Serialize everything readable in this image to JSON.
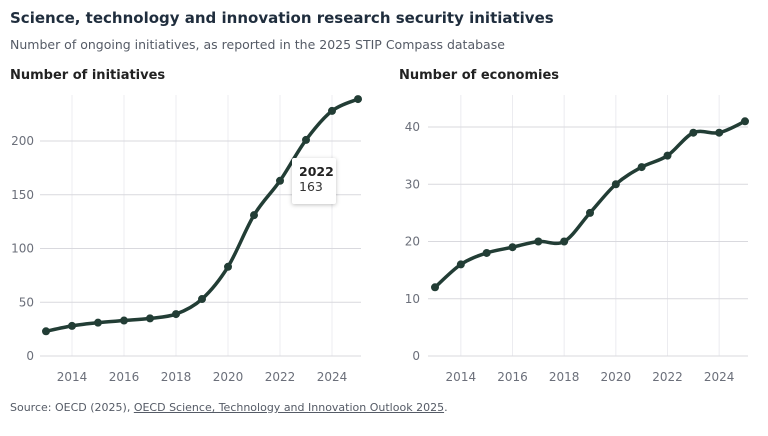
{
  "title": "Science, technology and innovation research security initiatives",
  "subtitle": "Number of ongoing initiatives, as reported in the 2025 STIP Compass database",
  "source": {
    "prefix": "Source: OECD (2025), ",
    "link": "OECD Science, Technology and Innovation Outlook 2025",
    "suffix": "."
  },
  "colors": {
    "line": "#223d35",
    "grid": "#d9d9de",
    "tick": "#6b6f7a"
  },
  "tooltip": {
    "year": "2022",
    "value": "163"
  },
  "chart_data": [
    {
      "type": "line",
      "title": "Number of initiatives",
      "x": [
        2013,
        2014,
        2015,
        2016,
        2017,
        2018,
        2019,
        2020,
        2021,
        2022,
        2023,
        2024,
        2025
      ],
      "values": [
        23,
        28,
        31,
        33,
        35,
        39,
        53,
        83,
        131,
        163,
        201,
        228,
        239
      ],
      "xticks": [
        2014,
        2016,
        2018,
        2020,
        2022,
        2024
      ],
      "yticks": [
        0,
        50,
        100,
        150,
        200
      ],
      "xlim": [
        2013,
        2025
      ],
      "ylim": [
        0,
        239
      ],
      "grid": true
    },
    {
      "type": "line",
      "title": "Number of economies",
      "x": [
        2013,
        2014,
        2015,
        2016,
        2017,
        2018,
        2019,
        2020,
        2021,
        2022,
        2023,
        2024,
        2025
      ],
      "values": [
        12,
        16,
        18,
        19,
        20,
        20,
        25,
        30,
        33,
        35,
        39,
        39,
        41
      ],
      "xticks": [
        2014,
        2016,
        2018,
        2020,
        2022,
        2024
      ],
      "yticks": [
        0,
        10,
        20,
        30,
        40
      ],
      "xlim": [
        2013,
        2025
      ],
      "ylim": [
        0,
        41
      ],
      "grid": true
    }
  ]
}
